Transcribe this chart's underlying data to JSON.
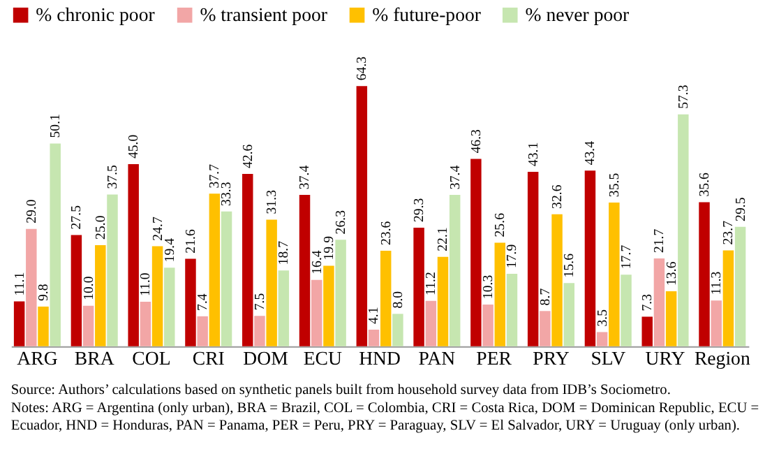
{
  "chart_data": {
    "type": "bar",
    "categories": [
      "ARG",
      "BRA",
      "COL",
      "CRI",
      "DOM",
      "ECU",
      "HND",
      "PAN",
      "PER",
      "PRY",
      "SLV",
      "URY",
      "Region"
    ],
    "series": [
      {
        "name": "% chronic poor",
        "color": "#c00000",
        "values": [
          11.1,
          27.5,
          45.0,
          21.6,
          42.6,
          37.4,
          64.3,
          29.3,
          46.3,
          43.1,
          43.4,
          7.3,
          35.6
        ],
        "value_labels": [
          "11.1",
          "27.5",
          "45.0",
          "21.6",
          "42.6",
          "37.4",
          "64.3",
          "29.3",
          "46.3",
          "43.1",
          "43.4",
          "7.3",
          "35.6"
        ]
      },
      {
        "name": "% transient poor",
        "color": "#f2a6a6",
        "values": [
          29.0,
          10.0,
          11.0,
          7.4,
          7.5,
          16.4,
          4.1,
          11.2,
          10.3,
          8.7,
          3.5,
          21.7,
          11.3
        ],
        "value_labels": [
          "29.0",
          "10.0",
          "11.0",
          "7.4",
          "7.5",
          "16.4",
          "4.1",
          "11.2",
          "10.3",
          "8.7",
          "3.5",
          "21.7",
          "11.3"
        ]
      },
      {
        "name": "% future-poor",
        "color": "#ffc000",
        "values": [
          9.8,
          25.0,
          24.7,
          37.7,
          31.3,
          19.9,
          23.6,
          22.1,
          25.6,
          32.6,
          35.5,
          13.6,
          23.7
        ],
        "value_labels": [
          "9.8",
          "25.0",
          "24.7",
          "37.7",
          "31.3",
          "19.9",
          "23.6",
          "22.1",
          "25.6",
          "32.6",
          "35.5",
          "13.6",
          "23.7"
        ]
      },
      {
        "name": "% never poor",
        "color": "#c6e6b0",
        "values": [
          50.1,
          37.5,
          19.4,
          33.3,
          18.7,
          26.3,
          8.0,
          37.4,
          17.9,
          15.6,
          17.7,
          57.3,
          29.5
        ],
        "value_labels": [
          "50.1",
          "37.5",
          "19.4",
          "33.3",
          "18.7",
          "26.3",
          "8.0",
          "37.4",
          "17.9",
          "15.6",
          "17.7",
          "57.3",
          "29.5"
        ]
      }
    ],
    "legend": "top",
    "grid": false,
    "annotations": [
      "Source: Authors’ calculations based on synthetic panels built from household survey data from IDB’s Sociometro.",
      "Notes: ARG = Argentina (only urban), BRA = Brazil, COL = Colombia, CRI = Costa Rica, DOM = Dominican Republic, ECU = Ecuador, HND = Honduras, PAN = Panama, PER = Peru, PRY = Paraguay, SLV = El Salvador, URY = Uruguay (only urban)."
    ]
  }
}
